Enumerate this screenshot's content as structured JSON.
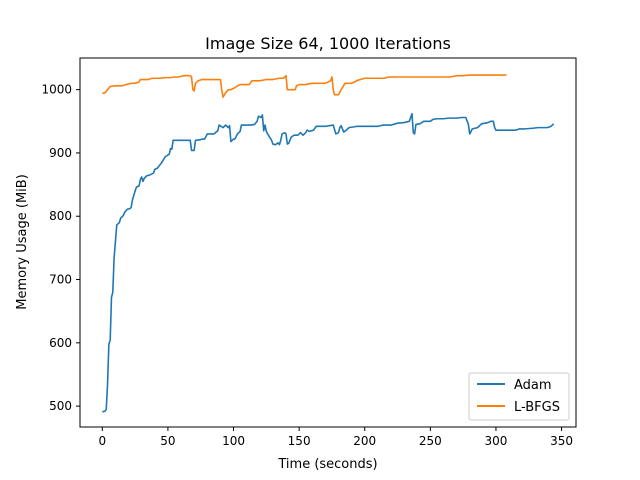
{
  "chart_data": {
    "type": "line",
    "title": "Image Size 64, 1000 Iterations",
    "xlabel": "Time (seconds)",
    "ylabel": "Memory Usage (MiB)",
    "xlim": [
      -17,
      361
    ],
    "ylim": [
      467,
      1050
    ],
    "xticks": [
      0,
      50,
      100,
      150,
      200,
      250,
      300,
      350
    ],
    "yticks": [
      500,
      600,
      700,
      800,
      900,
      1000
    ],
    "grid": false,
    "legend_position": "lower-right",
    "series": [
      {
        "name": "Adam",
        "color": "#1f77b4",
        "points": [
          [
            0,
            491
          ],
          [
            2,
            492
          ],
          [
            3,
            495
          ],
          [
            4,
            535
          ],
          [
            5,
            598
          ],
          [
            6,
            604
          ],
          [
            7,
            672
          ],
          [
            8,
            680
          ],
          [
            9,
            735
          ],
          [
            10,
            760
          ],
          [
            11,
            786
          ],
          [
            13,
            790
          ],
          [
            14,
            797
          ],
          [
            16,
            801
          ],
          [
            17,
            806
          ],
          [
            19,
            811
          ],
          [
            21,
            812
          ],
          [
            22,
            814
          ],
          [
            23,
            826
          ],
          [
            25,
            840
          ],
          [
            26,
            846
          ],
          [
            28,
            848
          ],
          [
            29,
            858
          ],
          [
            30,
            862
          ],
          [
            31,
            855
          ],
          [
            32,
            860
          ],
          [
            34,
            864
          ],
          [
            36,
            865
          ],
          [
            38,
            867
          ],
          [
            39,
            868
          ],
          [
            40,
            874
          ],
          [
            42,
            876
          ],
          [
            45,
            884
          ],
          [
            48,
            894
          ],
          [
            51,
            898
          ],
          [
            52,
            907
          ],
          [
            53,
            906
          ],
          [
            54,
            920
          ],
          [
            58,
            920
          ],
          [
            62,
            920
          ],
          [
            66,
            920
          ],
          [
            67,
            920
          ],
          [
            68,
            904
          ],
          [
            70,
            904
          ],
          [
            71,
            920
          ],
          [
            75,
            921
          ],
          [
            76,
            922
          ],
          [
            78,
            922
          ],
          [
            80,
            930
          ],
          [
            85,
            930
          ],
          [
            88,
            935
          ],
          [
            89,
            944
          ],
          [
            92,
            940
          ],
          [
            94,
            944
          ],
          [
            96,
            940
          ],
          [
            97,
            943
          ],
          [
            98,
            918
          ],
          [
            100,
            922
          ],
          [
            101,
            922
          ],
          [
            103,
            930
          ],
          [
            105,
            934
          ],
          [
            106,
            944
          ],
          [
            109,
            944
          ],
          [
            113,
            944
          ],
          [
            116,
            945
          ],
          [
            118,
            950
          ],
          [
            119,
            958
          ],
          [
            121,
            956
          ],
          [
            122,
            960
          ],
          [
            123,
            935
          ],
          [
            124,
            944
          ],
          [
            125,
            934
          ],
          [
            126,
            930
          ],
          [
            129,
            920
          ],
          [
            130,
            914
          ],
          [
            132,
            913
          ],
          [
            134,
            916
          ],
          [
            135,
            913
          ],
          [
            136,
            920
          ],
          [
            137,
            930
          ],
          [
            139,
            932
          ],
          [
            140,
            930
          ],
          [
            141,
            914
          ],
          [
            142,
            915
          ],
          [
            144,
            925
          ],
          [
            146,
            928
          ],
          [
            149,
            928
          ],
          [
            151,
            932
          ],
          [
            153,
            928
          ],
          [
            155,
            932
          ],
          [
            156,
            936
          ],
          [
            158,
            934
          ],
          [
            161,
            936
          ],
          [
            163,
            942
          ],
          [
            166,
            942
          ],
          [
            170,
            942
          ],
          [
            173,
            943
          ],
          [
            176,
            944
          ],
          [
            178,
            930
          ],
          [
            180,
            932
          ],
          [
            181,
            940
          ],
          [
            182,
            943
          ],
          [
            184,
            933
          ],
          [
            186,
            936
          ],
          [
            188,
            940
          ],
          [
            191,
            941
          ],
          [
            194,
            942
          ],
          [
            200,
            942
          ],
          [
            206,
            942
          ],
          [
            210,
            942
          ],
          [
            214,
            944
          ],
          [
            220,
            944
          ],
          [
            225,
            947
          ],
          [
            230,
            948
          ],
          [
            234,
            950
          ],
          [
            236,
            962
          ],
          [
            237,
            932
          ],
          [
            238,
            930
          ],
          [
            239,
            945
          ],
          [
            242,
            946
          ],
          [
            245,
            950
          ],
          [
            250,
            950
          ],
          [
            252,
            953
          ],
          [
            255,
            954
          ],
          [
            260,
            954
          ],
          [
            264,
            955
          ],
          [
            270,
            955
          ],
          [
            274,
            956
          ],
          [
            277,
            956
          ],
          [
            279,
            945
          ],
          [
            280,
            930
          ],
          [
            282,
            938
          ],
          [
            286,
            940
          ],
          [
            289,
            946
          ],
          [
            294,
            948
          ],
          [
            296,
            950
          ],
          [
            298,
            950
          ],
          [
            299,
            940
          ],
          [
            300,
            936
          ],
          [
            305,
            936
          ],
          [
            310,
            936
          ],
          [
            315,
            936
          ],
          [
            318,
            938
          ],
          [
            322,
            938
          ],
          [
            328,
            939
          ],
          [
            332,
            940
          ],
          [
            336,
            940
          ],
          [
            339,
            940
          ],
          [
            342,
            942
          ],
          [
            344,
            946
          ]
        ]
      },
      {
        "name": "L-BFGS",
        "color": "#ff7f0e",
        "points": [
          [
            0,
            994
          ],
          [
            2,
            995
          ],
          [
            4,
            1000
          ],
          [
            6,
            1005
          ],
          [
            10,
            1006
          ],
          [
            15,
            1006
          ],
          [
            18,
            1008
          ],
          [
            22,
            1010
          ],
          [
            25,
            1010
          ],
          [
            28,
            1012
          ],
          [
            29,
            1016
          ],
          [
            35,
            1016
          ],
          [
            38,
            1018
          ],
          [
            44,
            1018
          ],
          [
            48,
            1019
          ],
          [
            52,
            1019
          ],
          [
            55,
            1020
          ],
          [
            58,
            1020
          ],
          [
            62,
            1022
          ],
          [
            67,
            1022
          ],
          [
            68,
            1020
          ],
          [
            69,
            1000
          ],
          [
            70,
            998
          ],
          [
            71,
            1010
          ],
          [
            73,
            1014
          ],
          [
            76,
            1016
          ],
          [
            80,
            1016
          ],
          [
            84,
            1016
          ],
          [
            88,
            1016
          ],
          [
            90,
            1016
          ],
          [
            91,
            1000
          ],
          [
            92,
            988
          ],
          [
            94,
            995
          ],
          [
            96,
            1000
          ],
          [
            98,
            1000
          ],
          [
            101,
            1003
          ],
          [
            103,
            1006
          ],
          [
            105,
            1008
          ],
          [
            110,
            1008
          ],
          [
            112,
            1008
          ],
          [
            114,
            1014
          ],
          [
            120,
            1014
          ],
          [
            125,
            1016
          ],
          [
            130,
            1016
          ],
          [
            135,
            1018
          ],
          [
            138,
            1018
          ],
          [
            140,
            1022
          ],
          [
            141,
            1000
          ],
          [
            145,
            1000
          ],
          [
            147,
            1000
          ],
          [
            148,
            1006
          ],
          [
            150,
            1008
          ],
          [
            155,
            1008
          ],
          [
            160,
            1010
          ],
          [
            165,
            1010
          ],
          [
            170,
            1010
          ],
          [
            172,
            1012
          ],
          [
            174,
            1014
          ],
          [
            175,
            1020
          ],
          [
            176,
            1000
          ],
          [
            177,
            992
          ],
          [
            180,
            992
          ],
          [
            182,
            1000
          ],
          [
            185,
            1010
          ],
          [
            190,
            1010
          ],
          [
            195,
            1015
          ],
          [
            200,
            1018
          ],
          [
            205,
            1018
          ],
          [
            210,
            1018
          ],
          [
            215,
            1018
          ],
          [
            218,
            1020
          ],
          [
            225,
            1020
          ],
          [
            230,
            1020
          ],
          [
            240,
            1020
          ],
          [
            245,
            1020
          ],
          [
            250,
            1020
          ],
          [
            255,
            1020
          ],
          [
            260,
            1020
          ],
          [
            265,
            1020
          ],
          [
            270,
            1022
          ],
          [
            275,
            1022
          ],
          [
            280,
            1023
          ],
          [
            285,
            1023
          ],
          [
            290,
            1023
          ],
          [
            295,
            1023
          ],
          [
            300,
            1023
          ],
          [
            305,
            1023
          ],
          [
            308,
            1023
          ]
        ]
      }
    ]
  }
}
